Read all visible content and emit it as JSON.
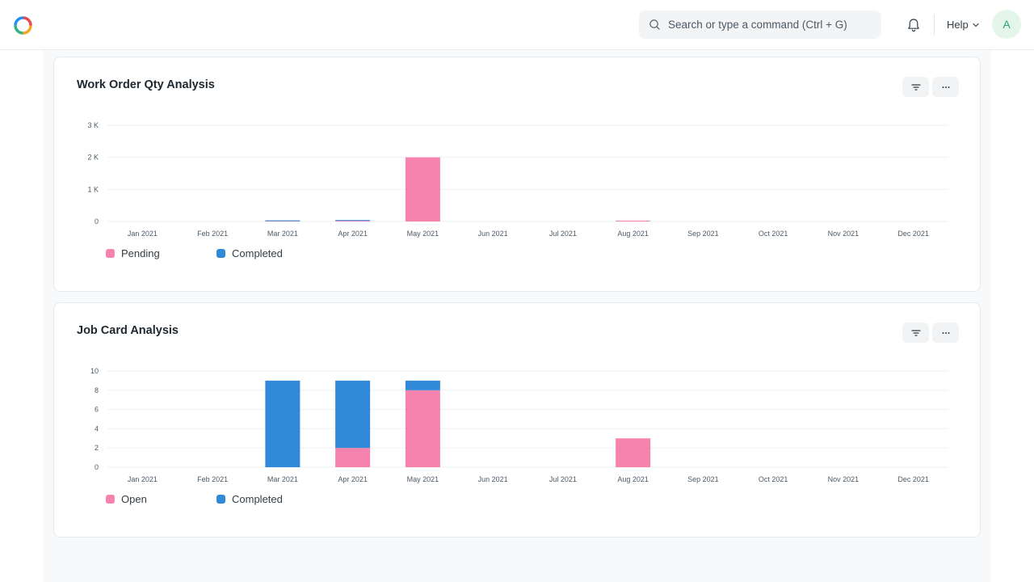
{
  "navbar": {
    "search_placeholder": "Search or type a command (Ctrl + G)",
    "help_label": "Help",
    "avatar_initial": "A",
    "icons": [
      "app-logo-icon",
      "search-icon",
      "bell-icon",
      "chevron-down-icon"
    ]
  },
  "colors": {
    "pink": "#f683ae",
    "blue": "#318ad8",
    "avatar_bg": "#e4f5e9",
    "avatar_fg": "#30a66d"
  },
  "cards": [
    {
      "title": "Work Order Qty Analysis",
      "legend": [
        {
          "label": "Pending",
          "color": "#f683ae"
        },
        {
          "label": "Completed",
          "color": "#318ad8"
        }
      ]
    },
    {
      "title": "Job Card Analysis",
      "legend": [
        {
          "label": "Open",
          "color": "#f683ae"
        },
        {
          "label": "Completed",
          "color": "#318ad8"
        }
      ]
    }
  ],
  "chart_data": [
    {
      "type": "bar",
      "stacked": true,
      "title": "Work Order Qty Analysis",
      "categories": [
        "Jan 2021",
        "Feb 2021",
        "Mar 2021",
        "Apr 2021",
        "May 2021",
        "Jun 2021",
        "Jul 2021",
        "Aug 2021",
        "Sep 2021",
        "Oct 2021",
        "Nov 2021",
        "Dec 2021"
      ],
      "y_ticks": [
        0,
        1000,
        2000,
        3000
      ],
      "y_tick_labels": [
        "0",
        "1 K",
        "2 K",
        "3 K"
      ],
      "ylim": [
        0,
        3000
      ],
      "grid": true,
      "legend_position": "bottom-left",
      "series": [
        {
          "name": "Pending",
          "color": "#f683ae",
          "values": [
            0,
            0,
            10,
            20,
            2000,
            0,
            0,
            10,
            0,
            0,
            0,
            0
          ]
        },
        {
          "name": "Completed",
          "color": "#318ad8",
          "values": [
            0,
            0,
            5,
            10,
            0,
            0,
            0,
            0,
            0,
            0,
            0,
            0
          ]
        }
      ]
    },
    {
      "type": "bar",
      "stacked": true,
      "title": "Job Card Analysis",
      "categories": [
        "Jan 2021",
        "Feb 2021",
        "Mar 2021",
        "Apr 2021",
        "May 2021",
        "Jun 2021",
        "Jul 2021",
        "Aug 2021",
        "Sep 2021",
        "Oct 2021",
        "Nov 2021",
        "Dec 2021"
      ],
      "y_ticks": [
        0,
        2,
        4,
        6,
        8,
        10
      ],
      "y_tick_labels": [
        "0",
        "2",
        "4",
        "6",
        "8",
        "10"
      ],
      "ylim": [
        0,
        10
      ],
      "grid": true,
      "legend_position": "bottom-left",
      "series": [
        {
          "name": "Open",
          "color": "#f683ae",
          "values": [
            0,
            0,
            0,
            2,
            8,
            0,
            0,
            3,
            0,
            0,
            0,
            0
          ]
        },
        {
          "name": "Completed",
          "color": "#318ad8",
          "values": [
            0,
            0,
            9,
            7,
            1,
            0,
            0,
            0,
            0,
            0,
            0,
            0
          ]
        }
      ]
    }
  ]
}
